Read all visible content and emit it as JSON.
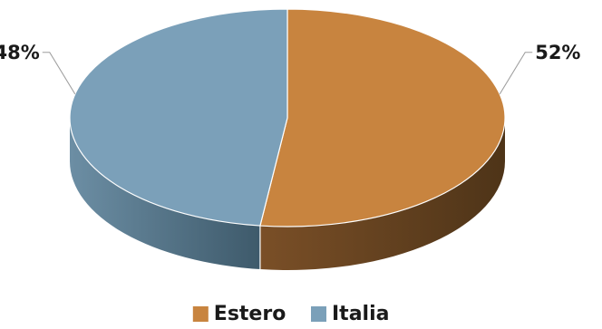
{
  "chart_data": {
    "type": "pie",
    "style": "3d",
    "categories": [
      "Estero",
      "Italia"
    ],
    "values": [
      52,
      48
    ],
    "labels": [
      "52%",
      "48%"
    ],
    "colors": [
      "#c8843f",
      "#7ba0b9"
    ],
    "side_colors_dark": [
      "#4e3418",
      "#3e5a6b"
    ],
    "side_colors_light": [
      "#7a4f27",
      "#6c8ea4"
    ],
    "legend_position": "bottom",
    "title": ""
  }
}
